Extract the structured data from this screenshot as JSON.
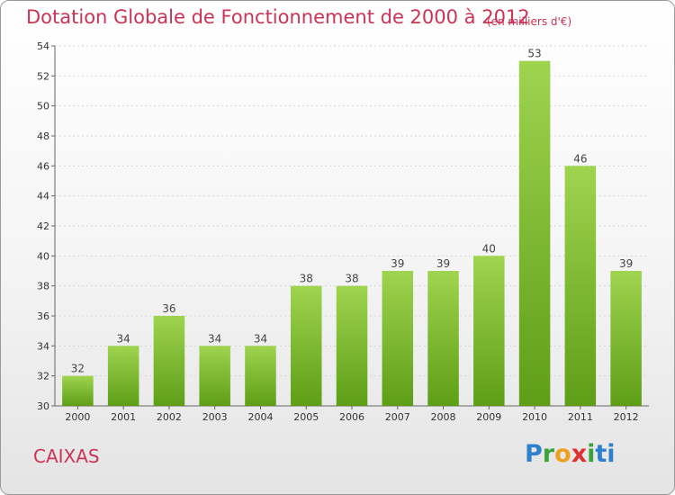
{
  "header": {
    "title": "Dotation Globale de Fonctionnement de 2000 à 2012",
    "subtitle": "(en milliers d'€)"
  },
  "footer": {
    "commune": "CAIXAS",
    "logo_letters": [
      "P",
      "r",
      "o",
      "x",
      "i",
      "ti"
    ]
  },
  "colors": {
    "bar_top": "#9fd44f",
    "bar_bottom": "#5e9e16",
    "title": "#cc3355"
  },
  "chart_data": {
    "type": "bar",
    "categories": [
      "2000",
      "2001",
      "2002",
      "2003",
      "2004",
      "2005",
      "2006",
      "2007",
      "2008",
      "2009",
      "2010",
      "2011",
      "2012"
    ],
    "values": [
      32,
      34,
      36,
      34,
      34,
      38,
      38,
      39,
      39,
      40,
      53,
      46,
      39
    ],
    "title": "Dotation Globale de Fonctionnement de 2000 à 2012",
    "subtitle": "(en milliers d'€)",
    "ylim": [
      30,
      54
    ],
    "yticks": [
      30,
      32,
      34,
      36,
      38,
      40,
      42,
      44,
      46,
      48,
      50,
      52,
      54
    ],
    "grid": true
  }
}
